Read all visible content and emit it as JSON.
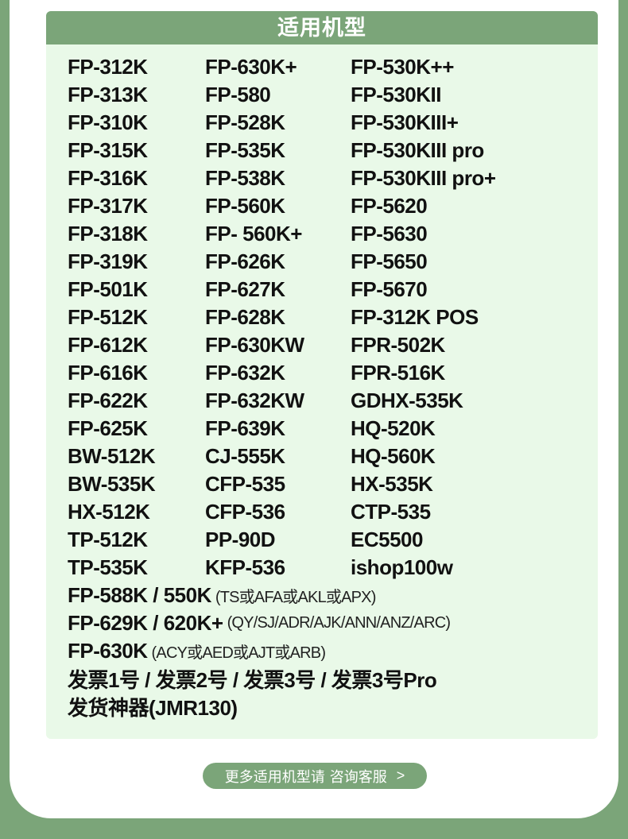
{
  "header": {
    "title": "适用机型"
  },
  "models": [
    [
      "FP-312K",
      "FP-630K+",
      "FP-530K++"
    ],
    [
      "FP-313K",
      "FP-580",
      "FP-530KII"
    ],
    [
      "FP-310K",
      "FP-528K",
      "FP-530KIII+"
    ],
    [
      "FP-315K",
      "FP-535K",
      "FP-530KIII pro"
    ],
    [
      "FP-316K",
      "FP-538K",
      "FP-530KIII pro+"
    ],
    [
      "FP-317K",
      "FP-560K",
      "FP-5620"
    ],
    [
      "FP-318K",
      "FP- 560K+",
      "FP-5630"
    ],
    [
      "FP-319K",
      "FP-626K",
      "FP-5650"
    ],
    [
      "FP-501K",
      "FP-627K",
      "FP-5670"
    ],
    [
      "FP-512K",
      "FP-628K",
      "FP-312K POS"
    ],
    [
      "FP-612K",
      "FP-630KW",
      "FPR-502K"
    ],
    [
      "FP-616K",
      "FP-632K",
      "FPR-516K"
    ],
    [
      "FP-622K",
      "FP-632KW",
      "GDHX-535K"
    ],
    [
      "FP-625K",
      "FP-639K",
      "HQ-520K"
    ],
    [
      "BW-512K",
      "CJ-555K",
      "HQ-560K"
    ],
    [
      "BW-535K",
      "CFP-535",
      "HX-535K"
    ],
    [
      "HX-512K",
      "CFP-536",
      "CTP-535"
    ],
    [
      "TP-512K",
      "PP-90D",
      "EC5500"
    ],
    [
      "TP-535K",
      "KFP-536",
      "ishop100w"
    ]
  ],
  "extra_lines": [
    {
      "main": "FP-588K / 550K",
      "note": "(TS或AFA或AKL或APX)"
    },
    {
      "main": "FP-629K / 620K+",
      "note": "(QY/SJ/ADR/AJK/ANN/ANZ/ARC)"
    },
    {
      "main": "FP-630K",
      "note": "(ACY或AED或AJT或ARB)"
    },
    {
      "main": "发票1号 / 发票2号 / 发票3号 / 发票3号Pro",
      "note": ""
    },
    {
      "main": "发货神器(JMR130)",
      "note": ""
    }
  ],
  "cta": {
    "prefix": "更多适用机型请",
    "link": "咨询客服",
    "arrow": ">"
  },
  "colors": {
    "accent": "#7ba579",
    "panel_bg": "#e9f9e8",
    "card_bg": "#ffffff"
  }
}
